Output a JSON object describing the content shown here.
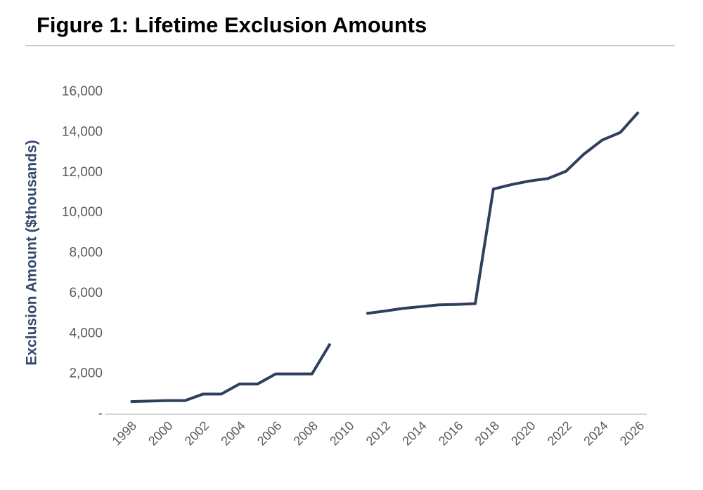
{
  "chart_data": {
    "type": "line",
    "title": "Figure 1: Lifetime Exclusion Amounts",
    "y_label": "Exclusion Amount ($thousands)",
    "x": [
      1998,
      1999,
      2000,
      2001,
      2002,
      2003,
      2004,
      2005,
      2006,
      2007,
      2008,
      2009,
      2010,
      2011,
      2012,
      2013,
      2014,
      2015,
      2016,
      2017,
      2018,
      2019,
      2020,
      2021,
      2022,
      2023,
      2024,
      2025,
      2026
    ],
    "series": [
      {
        "name": "Lifetime exclusion",
        "color": "#2e3f5c",
        "values": [
          625,
          650,
          675,
          675,
          1000,
          1000,
          1500,
          1500,
          2000,
          2000,
          2000,
          3500,
          null,
          5000,
          5120,
          5250,
          5340,
          5430,
          5450,
          5490,
          11180,
          11400,
          11580,
          11700,
          12060,
          12920,
          13610,
          13990,
          15000
        ]
      }
    ],
    "xlim": [
      1997,
      2027
    ],
    "xticks": [
      1998,
      2000,
      2002,
      2004,
      2006,
      2008,
      2010,
      2012,
      2014,
      2016,
      2018,
      2020,
      2022,
      2024,
      2026
    ],
    "ylim": [
      0,
      16000
    ],
    "yticks": [
      {
        "value": 0,
        "label": "-"
      },
      {
        "value": 2000,
        "label": "2,000"
      },
      {
        "value": 4000,
        "label": "4,000"
      },
      {
        "value": 6000,
        "label": "6,000"
      },
      {
        "value": 8000,
        "label": "8,000"
      },
      {
        "value": 10000,
        "label": "10,000"
      },
      {
        "value": 12000,
        "label": "12,000"
      },
      {
        "value": 14000,
        "label": "14,000"
      },
      {
        "value": 16000,
        "label": "16,000"
      }
    ],
    "grid": false
  }
}
